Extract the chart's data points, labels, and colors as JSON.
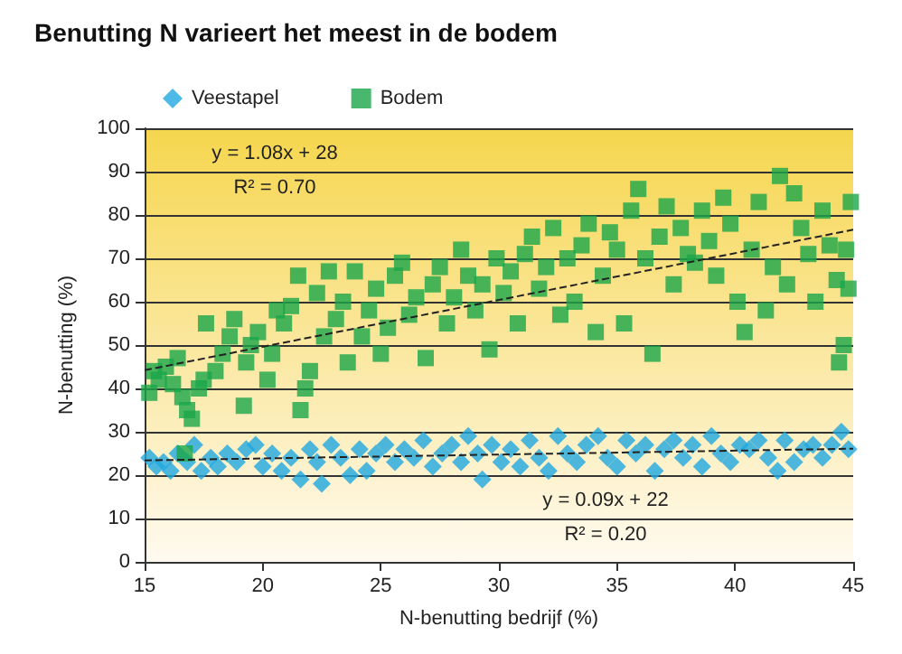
{
  "chart_data": {
    "type": "scatter",
    "title": "Benutting N varieert het meest in de bodem",
    "xlabel": "N-benutting bedrijf (%)",
    "ylabel": "N-benutting (%)",
    "xlim": [
      15,
      45
    ],
    "xticks": [
      15,
      20,
      25,
      30,
      35,
      40,
      45
    ],
    "ylim": [
      0,
      100
    ],
    "yticks": [
      0,
      10,
      20,
      30,
      40,
      50,
      60,
      70,
      80,
      90,
      100
    ],
    "grid": "y",
    "legend": "top left",
    "annotations": [
      "y = 1.08x + 28",
      "R² = 0.70",
      "y = 0.09x + 22",
      "R² = 0.20"
    ],
    "series": [
      {
        "name": "Veestapel",
        "color": "#1fa8e0",
        "marker": "diamond",
        "x": [
          15.2,
          15.5,
          15.8,
          16.1,
          16.4,
          16.8,
          17.1,
          17.4,
          17.8,
          18.1,
          18.5,
          18.9,
          19.3,
          19.7,
          20.0,
          20.4,
          20.8,
          21.2,
          21.6,
          22.0,
          22.3,
          22.5,
          22.9,
          23.3,
          23.7,
          24.1,
          24.4,
          24.8,
          25.2,
          25.6,
          26.0,
          26.4,
          26.8,
          27.2,
          27.6,
          28.0,
          28.4,
          28.7,
          29.1,
          29.3,
          29.7,
          30.1,
          30.5,
          30.9,
          31.3,
          31.7,
          32.1,
          32.5,
          32.9,
          33.3,
          33.7,
          34.2,
          34.6,
          35.0,
          35.4,
          35.8,
          36.2,
          36.6,
          37.0,
          37.4,
          37.8,
          38.2,
          38.6,
          39.0,
          39.4,
          39.8,
          40.2,
          40.6,
          41.0,
          41.4,
          41.8,
          42.1,
          42.5,
          42.9,
          43.3,
          43.7,
          44.1,
          44.5,
          44.8
        ],
        "values": [
          24,
          22,
          23,
          21,
          25,
          23,
          27,
          21,
          24,
          22,
          25,
          23,
          26,
          27,
          22,
          25,
          21,
          24,
          19,
          26,
          23,
          18,
          27,
          24,
          20,
          26,
          21,
          25,
          27,
          23,
          26,
          24,
          28,
          22,
          25,
          27,
          23,
          29,
          25,
          19,
          27,
          23,
          26,
          22,
          28,
          24,
          21,
          29,
          25,
          23,
          27,
          29,
          24,
          22,
          28,
          25,
          27,
          21,
          26,
          28,
          24,
          27,
          22,
          29,
          25,
          23,
          27,
          26,
          28,
          24,
          21,
          28,
          23,
          26,
          27,
          24,
          27,
          30,
          26
        ]
      },
      {
        "name": "Bodem",
        "color": "#1aa64a",
        "marker": "square",
        "x": [
          15.2,
          15.4,
          15.6,
          15.9,
          16.2,
          16.4,
          16.6,
          16.8,
          17.0,
          16.7,
          17.3,
          17.5,
          17.6,
          18.0,
          18.3,
          18.6,
          18.8,
          19.2,
          19.3,
          19.5,
          19.8,
          20.2,
          20.4,
          20.6,
          20.9,
          21.2,
          21.5,
          21.6,
          21.8,
          22.0,
          22.3,
          22.6,
          22.8,
          23.1,
          23.4,
          23.6,
          23.9,
          24.2,
          24.5,
          24.8,
          25.0,
          25.3,
          25.6,
          25.9,
          26.2,
          26.5,
          26.9,
          27.2,
          27.5,
          27.8,
          28.1,
          28.4,
          28.7,
          29.0,
          29.3,
          29.6,
          29.9,
          30.2,
          30.5,
          30.8,
          31.1,
          31.4,
          31.7,
          32.0,
          32.3,
          32.6,
          32.9,
          33.2,
          33.5,
          33.8,
          34.1,
          34.4,
          34.7,
          35.0,
          35.3,
          35.6,
          35.9,
          36.2,
          36.5,
          36.8,
          37.1,
          37.4,
          37.7,
          38.0,
          38.3,
          38.6,
          38.9,
          39.2,
          39.5,
          39.8,
          40.1,
          40.4,
          40.7,
          41.0,
          41.3,
          41.6,
          41.9,
          42.2,
          42.5,
          42.8,
          43.1,
          43.4,
          43.7,
          44.0,
          44.3,
          44.4,
          44.6,
          44.8,
          44.9,
          44.7
        ],
        "values": [
          39,
          44,
          42,
          45,
          41,
          47,
          38,
          35,
          33,
          25,
          40,
          42,
          55,
          44,
          48,
          52,
          56,
          36,
          46,
          50,
          53,
          42,
          48,
          58,
          55,
          59,
          66,
          35,
          40,
          44,
          62,
          52,
          67,
          56,
          60,
          46,
          67,
          52,
          58,
          63,
          48,
          54,
          66,
          69,
          57,
          61,
          47,
          64,
          68,
          55,
          61,
          72,
          66,
          58,
          64,
          49,
          70,
          62,
          67,
          55,
          71,
          75,
          63,
          68,
          77,
          57,
          70,
          60,
          73,
          78,
          53,
          66,
          76,
          72,
          55,
          81,
          86,
          70,
          48,
          75,
          82,
          64,
          77,
          71,
          69,
          81,
          74,
          66,
          84,
          78,
          60,
          53,
          72,
          83,
          58,
          68,
          89,
          64,
          85,
          77,
          71,
          60,
          81,
          73,
          65,
          46,
          50,
          63,
          83,
          72
        ]
      },
      {
        "type": "line",
        "color": "#222222",
        "marker": "none",
        "line_style": "dashed",
        "x": [
          15,
          45
        ],
        "values": [
          44.2,
          76.6
        ]
      },
      {
        "type": "line",
        "color": "#222222",
        "marker": "none",
        "line_style": "dashed",
        "x": [
          15,
          45
        ],
        "values": [
          23.4,
          26.1
        ]
      }
    ]
  }
}
